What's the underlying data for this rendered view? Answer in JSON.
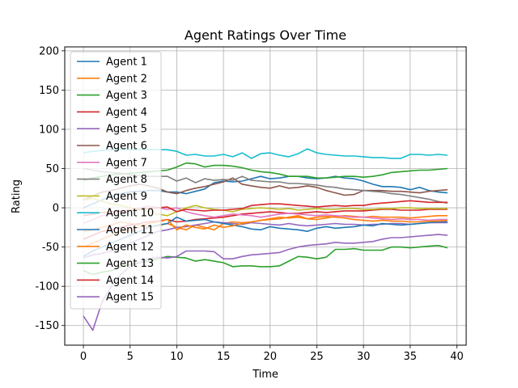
{
  "chart_data": {
    "type": "line",
    "title": "Agent Ratings Over Time",
    "xlabel": "Time",
    "ylabel": "Rating",
    "xlim": [
      -2,
      41
    ],
    "ylim": [
      -175,
      205
    ],
    "xticks": [
      0,
      5,
      10,
      15,
      20,
      25,
      30,
      35,
      40
    ],
    "yticks": [
      -150,
      -100,
      -50,
      0,
      50,
      100,
      150,
      200
    ],
    "grid": true,
    "legend_position": "upper-left",
    "series": [
      {
        "name": "Agent 1",
        "color": "#1f77b4",
        "values": [
          0,
          5,
          10,
          15,
          18,
          20,
          21,
          22,
          22,
          20,
          20,
          18,
          21,
          24,
          32,
          34,
          33,
          34,
          37,
          40,
          37,
          38,
          40,
          40,
          38,
          37,
          38,
          40,
          38,
          37,
          34,
          30,
          27,
          27,
          26,
          23,
          26,
          22,
          20,
          19
        ]
      },
      {
        "name": "Agent 2",
        "color": "#ff7f0e",
        "values": [
          -30,
          -28,
          -25,
          -22,
          -18,
          -20,
          -22,
          -25,
          -23,
          -20,
          -25,
          -28,
          -22,
          -25,
          -28,
          -20,
          -18,
          -19,
          -18,
          -16,
          -14,
          -12,
          -13,
          -12,
          -14,
          -15,
          -13,
          -11,
          -10,
          -11,
          -12,
          -11,
          -12,
          -12,
          -12,
          -13,
          -12,
          -11,
          -10,
          -10
        ]
      },
      {
        "name": "Agent 3",
        "color": "#2ca02c",
        "values": [
          35,
          38,
          40,
          42,
          43,
          44,
          45,
          46,
          47,
          48,
          52,
          57,
          56,
          52,
          54,
          54,
          53,
          51,
          48,
          46,
          45,
          43,
          40,
          40,
          40,
          38,
          38,
          39,
          40,
          40,
          39,
          40,
          42,
          45,
          46,
          47,
          48,
          48,
          49,
          50
        ]
      },
      {
        "name": "Agent 4",
        "color": "#d62728",
        "values": [
          -40,
          -35,
          -30,
          -28,
          -25,
          -22,
          -20,
          -18,
          -17,
          -15,
          -18,
          -17,
          -15,
          -14,
          -13,
          -12,
          -10,
          -8,
          -7,
          -6,
          -5,
          -6,
          -7,
          -7,
          -6,
          -5,
          -6,
          -5,
          -4,
          -4,
          -4,
          -3,
          -2,
          -2,
          -3,
          -3,
          -3,
          -2,
          -2,
          -2
        ]
      },
      {
        "name": "Agent 5",
        "color": "#9467bd",
        "values": [
          -64,
          -60,
          -58,
          -55,
          -50,
          -45,
          -40,
          -35,
          -30,
          -28,
          -25,
          -24,
          -22,
          -20,
          -18,
          -19,
          -20,
          -21,
          -19,
          -20,
          -21,
          -22,
          -20,
          -22,
          -23,
          -22,
          -21,
          -20,
          -21,
          -21,
          -22,
          -21,
          -21,
          -20,
          -20,
          -21,
          -20,
          -19,
          -19,
          -19
        ]
      },
      {
        "name": "Agent 6",
        "color": "#8c564b",
        "values": [
          10,
          15,
          20,
          22,
          25,
          28,
          30,
          28,
          25,
          20,
          18,
          22,
          25,
          27,
          30,
          33,
          38,
          30,
          28,
          26,
          25,
          28,
          25,
          26,
          28,
          26,
          22,
          19,
          16,
          17,
          22,
          22,
          22,
          21,
          21,
          20,
          19,
          21,
          22,
          23
        ]
      },
      {
        "name": "Agent 7",
        "color": "#e377c2",
        "values": [
          -20,
          -15,
          -10,
          -8,
          -5,
          -3,
          0,
          2,
          0,
          -2,
          0,
          -5,
          -8,
          -10,
          -12,
          -10,
          -8,
          -9,
          -10,
          -12,
          -10,
          -8,
          -7,
          -8,
          -9,
          -10,
          -9,
          -10,
          -11,
          -12,
          -12,
          -13,
          -14,
          -15,
          -14,
          -15,
          -15,
          -16,
          -15,
          -15
        ]
      },
      {
        "name": "Agent 8",
        "color": "#7f7f7f",
        "values": [
          50,
          48,
          46,
          45,
          44,
          42,
          41,
          40,
          40,
          40,
          34,
          38,
          32,
          37,
          35,
          36,
          35,
          40,
          35,
          34,
          33,
          33,
          31,
          31,
          30,
          29,
          27,
          26,
          24,
          23,
          22,
          21,
          20,
          18,
          17,
          15,
          13,
          11,
          8,
          6
        ]
      },
      {
        "name": "Agent 9",
        "color": "#bcbd22",
        "values": [
          10,
          12,
          8,
          5,
          3,
          0,
          -2,
          -5,
          -8,
          -10,
          -5,
          0,
          3,
          0,
          -2,
          -3,
          -5,
          -2,
          -1,
          0,
          -1,
          -2,
          -1,
          -3,
          -2,
          -1,
          -2,
          -2,
          -1,
          -1,
          -2,
          -2,
          -1,
          -1,
          0,
          0,
          -1,
          -1,
          -1,
          -1
        ]
      },
      {
        "name": "Agent 10",
        "color": "#17becf",
        "values": [
          70,
          72,
          73,
          74,
          74,
          74,
          74,
          74,
          74,
          74,
          72,
          67,
          68,
          66,
          66,
          68,
          65,
          70,
          63,
          69,
          70,
          67,
          65,
          69,
          75,
          70,
          68,
          67,
          66,
          66,
          65,
          64,
          64,
          63,
          63,
          68,
          68,
          67,
          68,
          67
        ]
      },
      {
        "name": "Agent 11",
        "color": "#1f77b4",
        "values": [
          -62,
          -55,
          -50,
          -45,
          -40,
          -35,
          -30,
          -25,
          -22,
          -20,
          -12,
          -17,
          -16,
          -15,
          -18,
          -20,
          -22,
          -24,
          -27,
          -28,
          -24,
          -26,
          -27,
          -28,
          -30,
          -26,
          -24,
          -26,
          -25,
          -24,
          -22,
          -23,
          -20,
          -21,
          -22,
          -21,
          -20,
          -19,
          -18,
          -18
        ]
      },
      {
        "name": "Agent 12",
        "color": "#ff7f0e",
        "values": [
          -50,
          -45,
          -40,
          -35,
          -30,
          -28,
          -25,
          -20,
          -18,
          -15,
          -28,
          -22,
          -25,
          -27,
          -22,
          -25,
          -23,
          -20,
          -18,
          -16,
          -15,
          -14,
          -12,
          -10,
          -14,
          -12,
          -11,
          -12,
          -13,
          -15,
          -16,
          -17,
          -16,
          -17,
          -17,
          -18,
          -18,
          -17,
          -17,
          -16
        ]
      },
      {
        "name": "Agent 13",
        "color": "#2ca02c",
        "values": [
          -80,
          -85,
          -82,
          -80,
          -75,
          -72,
          -70,
          -68,
          -65,
          -62,
          -63,
          -64,
          -68,
          -66,
          -68,
          -70,
          -75,
          -74,
          -74,
          -75,
          -75,
          -74,
          -68,
          -62,
          -63,
          -65,
          -63,
          -53,
          -53,
          -52,
          -54,
          -54,
          -54,
          -50,
          -50,
          -51,
          -50,
          -49,
          -48,
          -51
        ]
      },
      {
        "name": "Agent 14",
        "color": "#d62728",
        "values": [
          -10,
          -8,
          -6,
          -5,
          -4,
          -3,
          -2,
          -1,
          0,
          1,
          -5,
          -2,
          -3,
          -4,
          -3,
          -3,
          -2,
          -1,
          3,
          4,
          5,
          5,
          4,
          3,
          2,
          1,
          2,
          3,
          2,
          3,
          3,
          5,
          6,
          7,
          8,
          9,
          8,
          7,
          7,
          7
        ]
      },
      {
        "name": "Agent 15",
        "color": "#9467bd",
        "values": [
          -138,
          -156,
          -120,
          -100,
          -85,
          -75,
          -70,
          -65,
          -63,
          -64,
          -62,
          -55,
          -55,
          -55,
          -56,
          -65,
          -65,
          -62,
          -60,
          -59,
          -58,
          -57,
          -53,
          -50,
          -48,
          -47,
          -46,
          -44,
          -45,
          -45,
          -44,
          -43,
          -40,
          -38,
          -38,
          -37,
          -36,
          -35,
          -34,
          -35
        ]
      }
    ]
  }
}
